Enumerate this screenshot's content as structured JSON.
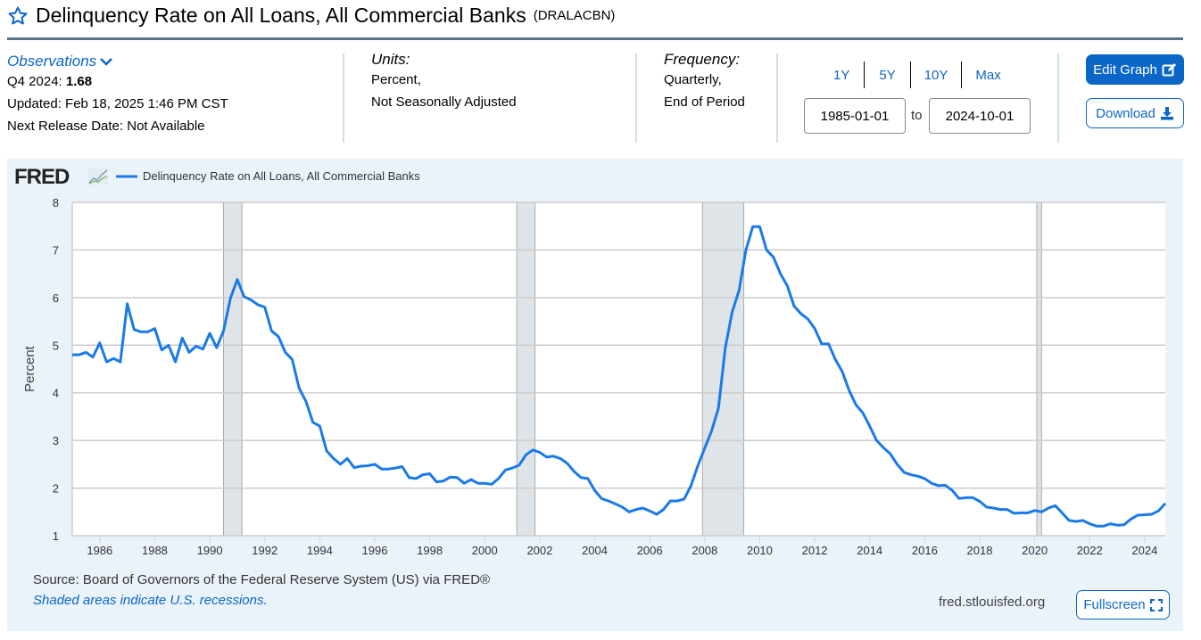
{
  "header": {
    "title": "Delinquency Rate on All Loans, All Commercial Banks",
    "series_id": "(DRALACBN)",
    "star_icon": "star-outline-icon"
  },
  "observations": {
    "label": "Observations",
    "latest_period": "Q4 2024:",
    "latest_value": "1.68",
    "updated": "Updated: Feb 18, 2025 1:46 PM CST",
    "next_release": "Next Release Date: Not Available"
  },
  "units": {
    "label": "Units:",
    "line1": "Percent,",
    "line2": "Not Seasonally Adjusted"
  },
  "frequency": {
    "label": "Frequency:",
    "line1": "Quarterly,",
    "line2": "End of Period"
  },
  "range": {
    "buttons": [
      "1Y",
      "5Y",
      "10Y",
      "Max"
    ],
    "start": "1985-01-01",
    "to": "to",
    "end": "2024-10-01"
  },
  "actions": {
    "edit": "Edit Graph",
    "download": "Download",
    "fullscreen": "Fullscreen"
  },
  "footer": {
    "source": "Source: Board of Governors of the Federal Reserve System (US) via FRED®",
    "recession_note": "Shaded areas indicate U.S. recessions.",
    "site": "fred.stlouisfed.org"
  },
  "colors": {
    "accent": "#0a67c8",
    "line": "#1a7ae8",
    "recession": "#dfe4e8",
    "panel": "#eaf2fa"
  },
  "chart_data": {
    "type": "line",
    "logo": "FRED",
    "legend": "Delinquency Rate on All Loans, All Commercial Banks",
    "legend_position": "top-left",
    "ylabel": "Percent",
    "xlabel": "",
    "ylim": [
      1,
      8
    ],
    "xlim": [
      1985.0,
      2024.75
    ],
    "yticks": [
      "1",
      "2",
      "3",
      "4",
      "5",
      "6",
      "7",
      "8"
    ],
    "xticks": [
      "1986",
      "1988",
      "1990",
      "1992",
      "1994",
      "1996",
      "1998",
      "2000",
      "2002",
      "2004",
      "2006",
      "2008",
      "2010",
      "2012",
      "2014",
      "2016",
      "2018",
      "2020",
      "2022",
      "2024"
    ],
    "grid": true,
    "start_year": 1985,
    "frequency": "quarterly",
    "recessions": [
      [
        1990.5,
        1991.17
      ],
      [
        2001.17,
        2001.83
      ],
      [
        2007.92,
        2009.42
      ],
      [
        2020.08,
        2020.25
      ]
    ],
    "values": [
      4.8,
      4.8,
      4.85,
      4.75,
      5.05,
      4.65,
      4.72,
      4.65,
      5.87,
      5.33,
      5.28,
      5.28,
      5.35,
      4.9,
      5.0,
      4.65,
      5.15,
      4.85,
      4.98,
      4.92,
      5.25,
      4.95,
      5.3,
      5.98,
      6.38,
      6.02,
      5.95,
      5.85,
      5.8,
      5.3,
      5.18,
      4.85,
      4.7,
      4.1,
      3.82,
      3.38,
      3.3,
      2.78,
      2.62,
      2.5,
      2.62,
      2.43,
      2.46,
      2.47,
      2.5,
      2.4,
      2.4,
      2.42,
      2.45,
      2.22,
      2.2,
      2.28,
      2.3,
      2.13,
      2.15,
      2.23,
      2.22,
      2.1,
      2.18,
      2.1,
      2.1,
      2.08,
      2.2,
      2.38,
      2.42,
      2.48,
      2.7,
      2.8,
      2.75,
      2.65,
      2.67,
      2.62,
      2.52,
      2.35,
      2.22,
      2.2,
      1.95,
      1.78,
      1.73,
      1.67,
      1.6,
      1.5,
      1.55,
      1.58,
      1.52,
      1.45,
      1.55,
      1.73,
      1.73,
      1.77,
      2.05,
      2.47,
      2.84,
      3.2,
      3.68,
      4.95,
      5.7,
      6.15,
      7.0,
      7.49,
      7.49,
      7.0,
      6.85,
      6.5,
      6.25,
      5.82,
      5.66,
      5.55,
      5.35,
      5.03,
      5.03,
      4.7,
      4.45,
      4.05,
      3.75,
      3.58,
      3.3,
      3.0,
      2.85,
      2.72,
      2.5,
      2.33,
      2.28,
      2.25,
      2.2,
      2.1,
      2.05,
      2.06,
      1.95,
      1.78,
      1.8,
      1.8,
      1.72,
      1.6,
      1.58,
      1.55,
      1.55,
      1.47,
      1.48,
      1.48,
      1.53,
      1.5,
      1.58,
      1.63,
      1.48,
      1.32,
      1.3,
      1.32,
      1.25,
      1.2,
      1.2,
      1.25,
      1.22,
      1.23,
      1.35,
      1.43,
      1.44,
      1.45,
      1.52,
      1.68
    ]
  }
}
